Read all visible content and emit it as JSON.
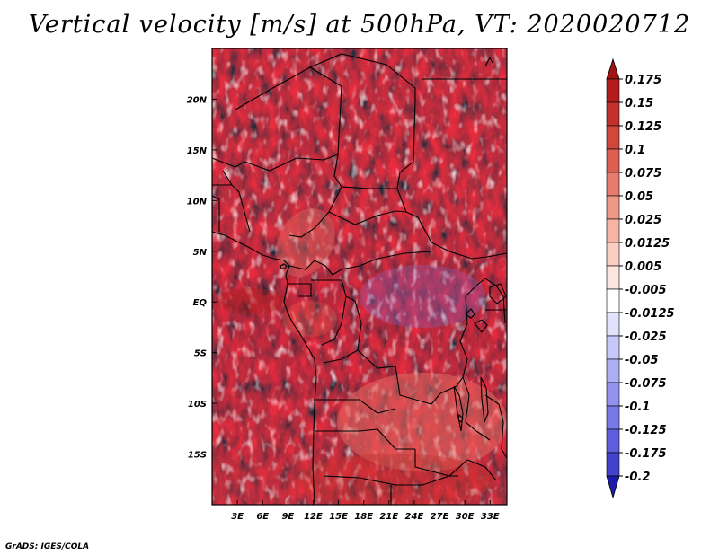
{
  "title": "Vertical velocity [m/s] at 500hPa, VT: 2020020712",
  "credit": "GrADS: IGES/COLA",
  "map": {
    "lon_range": [
      0,
      35
    ],
    "lat_range": [
      -20,
      25
    ],
    "lon_ticks": [
      {
        "value": 3,
        "label": "3E"
      },
      {
        "value": 6,
        "label": "6E"
      },
      {
        "value": 9,
        "label": "9E"
      },
      {
        "value": 12,
        "label": "12E"
      },
      {
        "value": 15,
        "label": "15E"
      },
      {
        "value": 18,
        "label": "18E"
      },
      {
        "value": 21,
        "label": "21E"
      },
      {
        "value": 24,
        "label": "24E"
      },
      {
        "value": 27,
        "label": "27E"
      },
      {
        "value": 30,
        "label": "30E"
      },
      {
        "value": 33,
        "label": "33E"
      }
    ],
    "lat_ticks": [
      {
        "value": 20,
        "label": "20N"
      },
      {
        "value": 15,
        "label": "15N"
      },
      {
        "value": 10,
        "label": "10N"
      },
      {
        "value": 5,
        "label": "5N"
      },
      {
        "value": 0,
        "label": "EQ"
      },
      {
        "value": -5,
        "label": "5S"
      },
      {
        "value": -10,
        "label": "10S"
      },
      {
        "value": -15,
        "label": "15S"
      }
    ]
  },
  "colorbar": {
    "levels": [
      {
        "label": "0.175",
        "color": "#b41c1c"
      },
      {
        "label": "0.15",
        "color": "#c4302c"
      },
      {
        "label": "0.125",
        "color": "#d2473c"
      },
      {
        "label": "0.1",
        "color": "#dd5f51"
      },
      {
        "label": "0.075",
        "color": "#e67c6c"
      },
      {
        "label": "0.05",
        "color": "#ee9888"
      },
      {
        "label": "0.025",
        "color": "#f5b4a6"
      },
      {
        "label": "0.0125",
        "color": "#f9cfc4"
      },
      {
        "label": "0.005",
        "color": "#fde6e0"
      },
      {
        "label": "-0.005",
        "color": "#ffffff"
      },
      {
        "label": "-0.0125",
        "color": "#e2e2fc"
      },
      {
        "label": "-0.025",
        "color": "#c8c8f8"
      },
      {
        "label": "-0.05",
        "color": "#aeaef4"
      },
      {
        "label": "-0.075",
        "color": "#9292ee"
      },
      {
        "label": "-0.1",
        "color": "#7878e6"
      },
      {
        "label": "-0.125",
        "color": "#5e5edc"
      },
      {
        "label": "-0.175",
        "color": "#4242cc"
      },
      {
        "label": "-0.2",
        "color": "#2a2ab8"
      }
    ],
    "top_cap_color": "#a01414",
    "bottom_cap_color": "#1c1ca8"
  }
}
